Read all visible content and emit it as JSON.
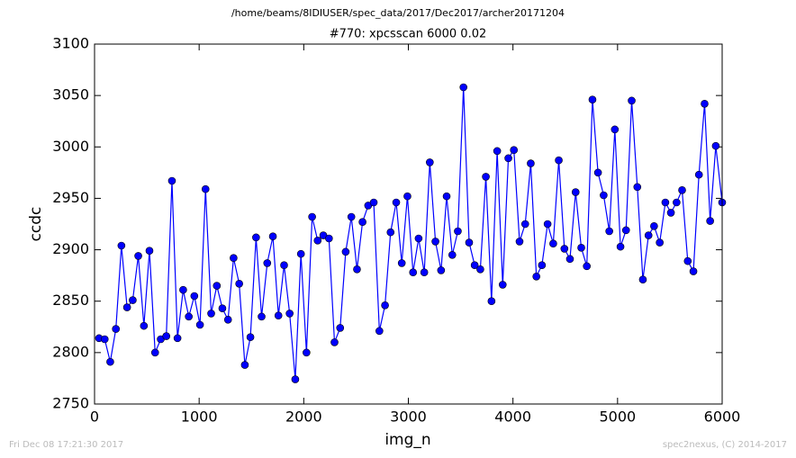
{
  "chart_data": {
    "type": "line",
    "title": "#770: xpcsscan 6000 0.02",
    "subtitle": "/home/beams/8IDIUSER/spec_data/2017/Dec2017/archer20171204",
    "x_label": "img_n",
    "y_label": "ccdc",
    "annotations": [
      "Fri Dec 08 17:21:30 2017",
      "spec2nexus, (C) 2014-2017"
    ],
    "x": [
      43,
      97,
      150,
      204,
      257,
      311,
      365,
      418,
      472,
      525,
      579,
      633,
      686,
      740,
      793,
      847,
      901,
      954,
      1008,
      1061,
      1115,
      1169,
      1222,
      1276,
      1329,
      1383,
      1437,
      1490,
      1544,
      1597,
      1651,
      1705,
      1758,
      1812,
      1865,
      1919,
      1973,
      2026,
      2080,
      2133,
      2187,
      2241,
      2294,
      2348,
      2401,
      2455,
      2509,
      2562,
      2616,
      2669,
      2723,
      2777,
      2830,
      2884,
      2937,
      2991,
      3045,
      3098,
      3152,
      3205,
      3259,
      3313,
      3366,
      3420,
      3473,
      3527,
      3581,
      3634,
      3688,
      3741,
      3795,
      3849,
      3902,
      3956,
      4009,
      4063,
      4117,
      4170,
      4224,
      4277,
      4331,
      4385,
      4438,
      4492,
      4545,
      4599,
      4653,
      4706,
      4760,
      4813,
      4867,
      4921,
      4974,
      5028,
      5081,
      5135,
      5189,
      5242,
      5296,
      5349,
      5403,
      5457,
      5510,
      5564,
      5617,
      5671,
      5725,
      5778,
      5832,
      5885,
      5939,
      6000
    ],
    "series": [
      {
        "color": "#0000ff",
        "values": [
          2814,
          2813,
          2791,
          2823,
          2904,
          2844,
          2851,
          2894,
          2826,
          2899,
          2800,
          2813,
          2816,
          2967,
          2814,
          2861,
          2835,
          2855,
          2827,
          2959,
          2838,
          2865,
          2843,
          2832,
          2892,
          2867,
          2788,
          2815,
          2912,
          2835,
          2887,
          2913,
          2836,
          2885,
          2838,
          2774,
          2896,
          2800,
          2932,
          2909,
          2914,
          2911,
          2810,
          2824,
          2898,
          2932,
          2881,
          2927,
          2943,
          2946,
          2821,
          2846,
          2917,
          2946,
          2887,
          2952,
          2878,
          2911,
          2878,
          2985,
          2908,
          2880,
          2952,
          2895,
          2918,
          3058,
          2907,
          2885,
          2881,
          2971,
          2850,
          2996,
          2866,
          2989,
          2997,
          2908,
          2925,
          2984,
          2874,
          2885,
          2925,
          2906,
          2987,
          2901,
          2891,
          2956,
          2902,
          2884,
          3046,
          2975,
          2953,
          2918,
          3017,
          2903,
          2919,
          3045,
          2961,
          2871,
          2914,
          2923,
          2907,
          2946,
          2936,
          2946,
          2958,
          2889,
          2879,
          2973,
          3042,
          2928,
          3001,
          2946
        ]
      }
    ],
    "xlim": [
      0,
      6000
    ],
    "xticks": [
      0,
      1000,
      2000,
      3000,
      4000,
      5000,
      6000
    ],
    "ylim": [
      2750,
      3100
    ],
    "yticks": [
      2750,
      2800,
      2850,
      2900,
      2950,
      3000,
      3050,
      3100
    ],
    "grid": false
  }
}
